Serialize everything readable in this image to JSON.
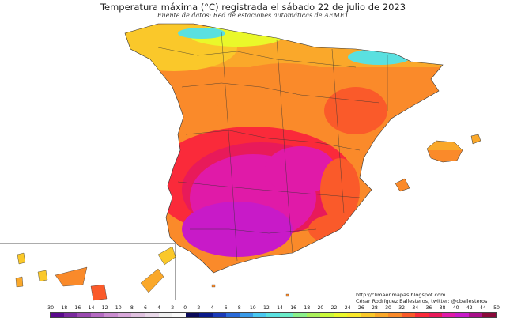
{
  "map": {
    "title": "Temperatura máxima (°C) registrada el sábado 22 de julio de 2023",
    "subtitle": "Fuente de datos: Red de estaciones automáticas de AEMET",
    "credit_url": "http://climaenmapas.blogspot.com",
    "credit_author": "César Rodríguez Ballesteros, twitter: @cballesteros"
  },
  "legend": {
    "labels": [
      "-30",
      "-18",
      "-16",
      "-14",
      "-12",
      "-10",
      "-8",
      "-6",
      "-4",
      "-2",
      "0",
      "2",
      "4",
      "6",
      "8",
      "10",
      "12",
      "14",
      "16",
      "18",
      "20",
      "22",
      "24",
      "26",
      "28",
      "30",
      "32",
      "34",
      "36",
      "38",
      "40",
      "42",
      "44",
      "50"
    ],
    "colors": [
      "#5a0a8c",
      "#7a2a9e",
      "#9a4ab0",
      "#b46ac2",
      "#c98ccf",
      "#d8a8da",
      "#e0c2e0",
      "#e8d8e8",
      "#f0f0f0",
      "#fafafa",
      "#0a0a5a",
      "#0a1a8a",
      "#1a3ab8",
      "#2a6ad8",
      "#3a9ae8",
      "#4ac8f0",
      "#5ae0e0",
      "#6aecc8",
      "#8af08a",
      "#aaf05a",
      "#cafa3a",
      "#eaf82a",
      "#fae82a",
      "#fac82a",
      "#faa82a",
      "#fa8a2a",
      "#fa5a2a",
      "#fa2a3a",
      "#e81a5a",
      "#e01aa8",
      "#c81ac8",
      "#a8108a",
      "#8a0a3a"
    ]
  }
}
